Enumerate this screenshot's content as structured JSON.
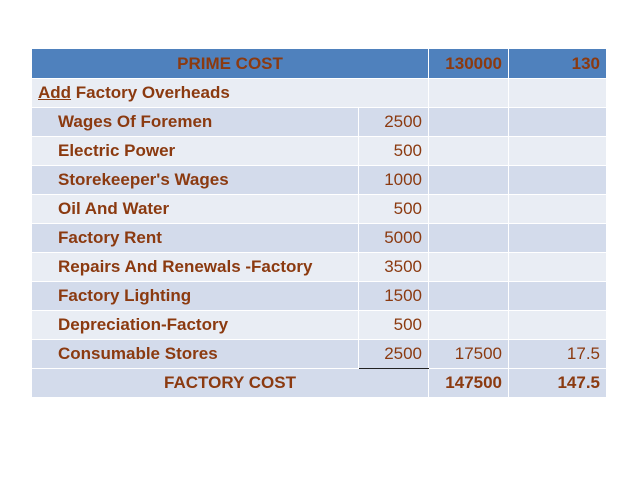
{
  "header": {
    "label": "PRIME COST",
    "amount": "130000",
    "per_unit": "130"
  },
  "add_row": {
    "prefix": "Add",
    "label": " Factory Overheads"
  },
  "items": [
    {
      "label": "Wages Of Foremen",
      "amount": "2500"
    },
    {
      "label": "Electric Power",
      "amount": "500"
    },
    {
      "label": "Storekeeper's Wages",
      "amount": "1000"
    },
    {
      "label": "Oil And Water",
      "amount": "500"
    },
    {
      "label": "Factory Rent",
      "amount": "5000"
    },
    {
      "label": "Repairs And Renewals -Factory",
      "amount": "3500"
    },
    {
      "label": "Factory Lighting",
      "amount": "1500"
    },
    {
      "label": "Depreciation-Factory",
      "amount": "500"
    },
    {
      "label": "Consumable Stores",
      "amount": "2500",
      "total": "17500",
      "total_per_unit": "17.5"
    }
  ],
  "footer": {
    "label": "FACTORY COST",
    "amount": "147500",
    "per_unit": "147.5"
  },
  "colors": {
    "header_bg": "#4f81bd",
    "row_dark": "#d3dbeb",
    "row_light": "#e9edf4",
    "text": "#8B3A10"
  }
}
